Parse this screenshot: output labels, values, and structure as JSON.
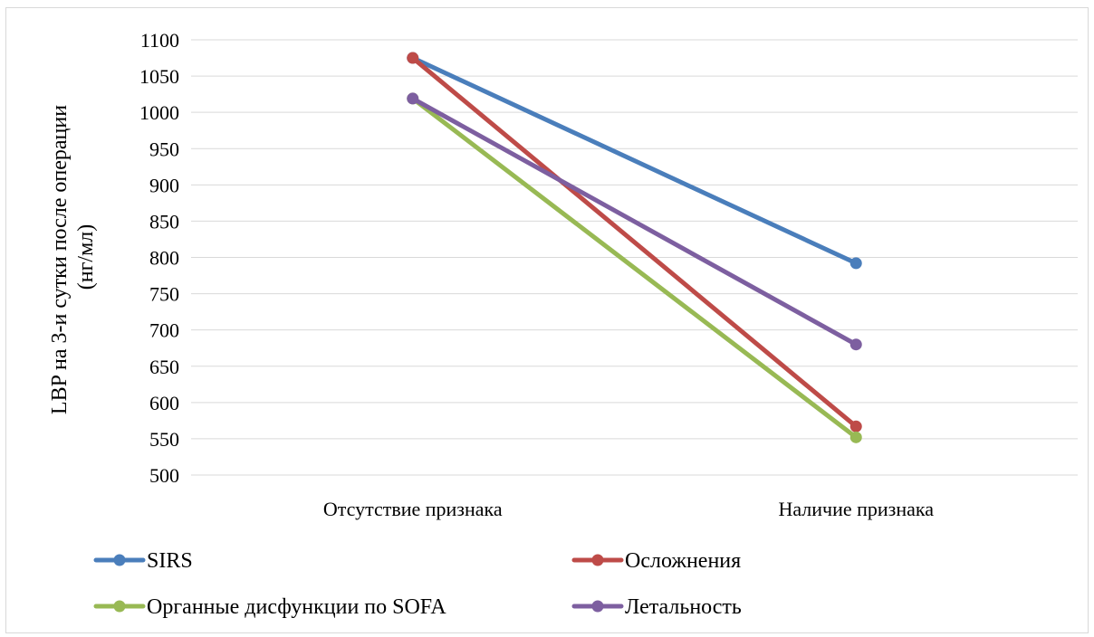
{
  "chart_data": {
    "type": "line",
    "categories": [
      "Отсутствие признака",
      "Наличие признака"
    ],
    "ylabel_line1": "LBP на 3-и сутки после операции",
    "ylabel_line2": "(нг/мл)",
    "ylim": [
      500,
      1100
    ],
    "ytick_step": 50,
    "yticks": [
      "500",
      "550",
      "600",
      "650",
      "700",
      "750",
      "800",
      "850",
      "900",
      "950",
      "1000",
      "1050",
      "1100"
    ],
    "grid": true,
    "legend_position": "bottom",
    "series": [
      {
        "name": "SIRS",
        "values": [
          1075,
          792
        ],
        "color": "#4a7ebb"
      },
      {
        "name": "Осложнения",
        "values": [
          1075,
          567
        ],
        "color": "#be4b48"
      },
      {
        "name": "Органные дисфункции по SOFA",
        "values": [
          1019,
          552
        ],
        "color": "#98b954"
      },
      {
        "name": "Летальность",
        "values": [
          1019,
          680
        ],
        "color": "#7d5fa0"
      }
    ]
  }
}
